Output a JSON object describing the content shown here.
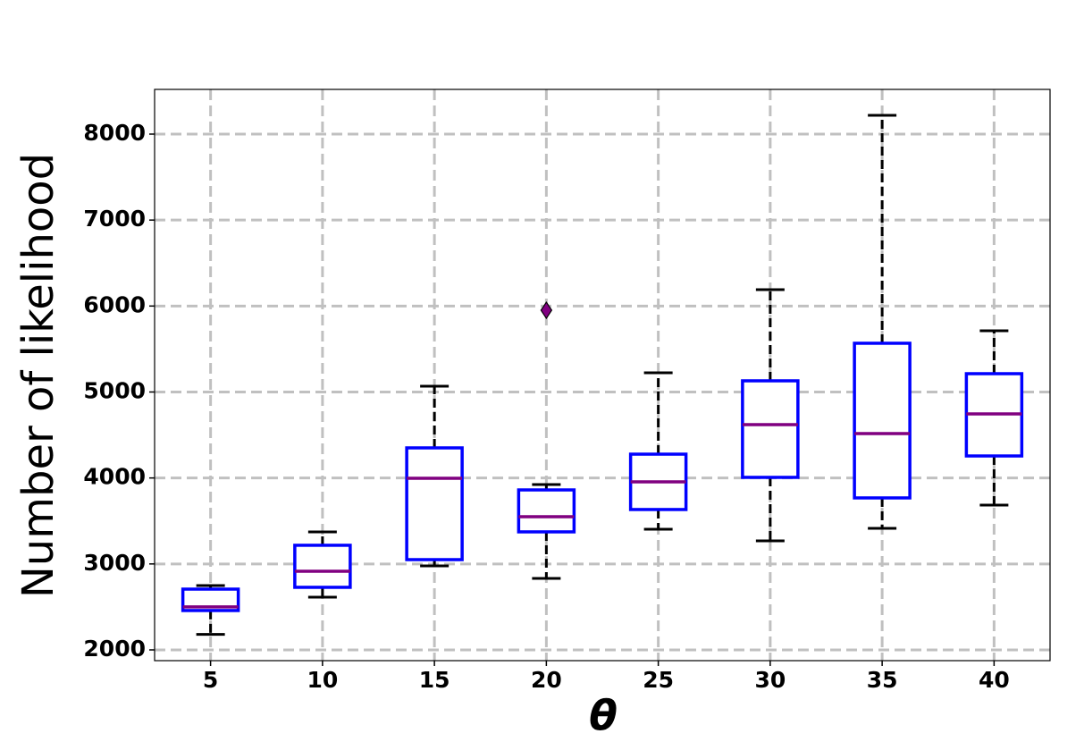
{
  "chart_data": {
    "type": "box",
    "xlabel": "θ",
    "ylabel": "Number of likelihood",
    "categories": [
      5,
      10,
      15,
      20,
      25,
      30,
      35,
      40
    ],
    "whislo": [
      2180,
      2613,
      2977,
      2832,
      3404,
      3269,
      3414,
      3685
    ],
    "q1": [
      2458,
      2728,
      3050,
      3373,
      3633,
      4007,
      3768,
      4256
    ],
    "median": [
      2500,
      2915,
      3996,
      3549,
      3955,
      4620,
      4516,
      4745
    ],
    "q3": [
      2707,
      3217,
      4350,
      3861,
      4277,
      5130,
      5567,
      5213
    ],
    "whishi": [
      2749,
      3373,
      5068,
      3924,
      5223,
      6190,
      8218,
      5712
    ],
    "fliers": [
      [],
      [],
      [],
      [
        5951
      ],
      [],
      [],
      [],
      []
    ],
    "box_color": "#0000ff",
    "median_color": "#800080",
    "whisker_color": "#000000",
    "flier_color": "#800080",
    "ylim": [
      1875,
      8520
    ],
    "yticks": [
      2000,
      3000,
      4000,
      5000,
      6000,
      7000,
      8000
    ],
    "grid": true
  }
}
